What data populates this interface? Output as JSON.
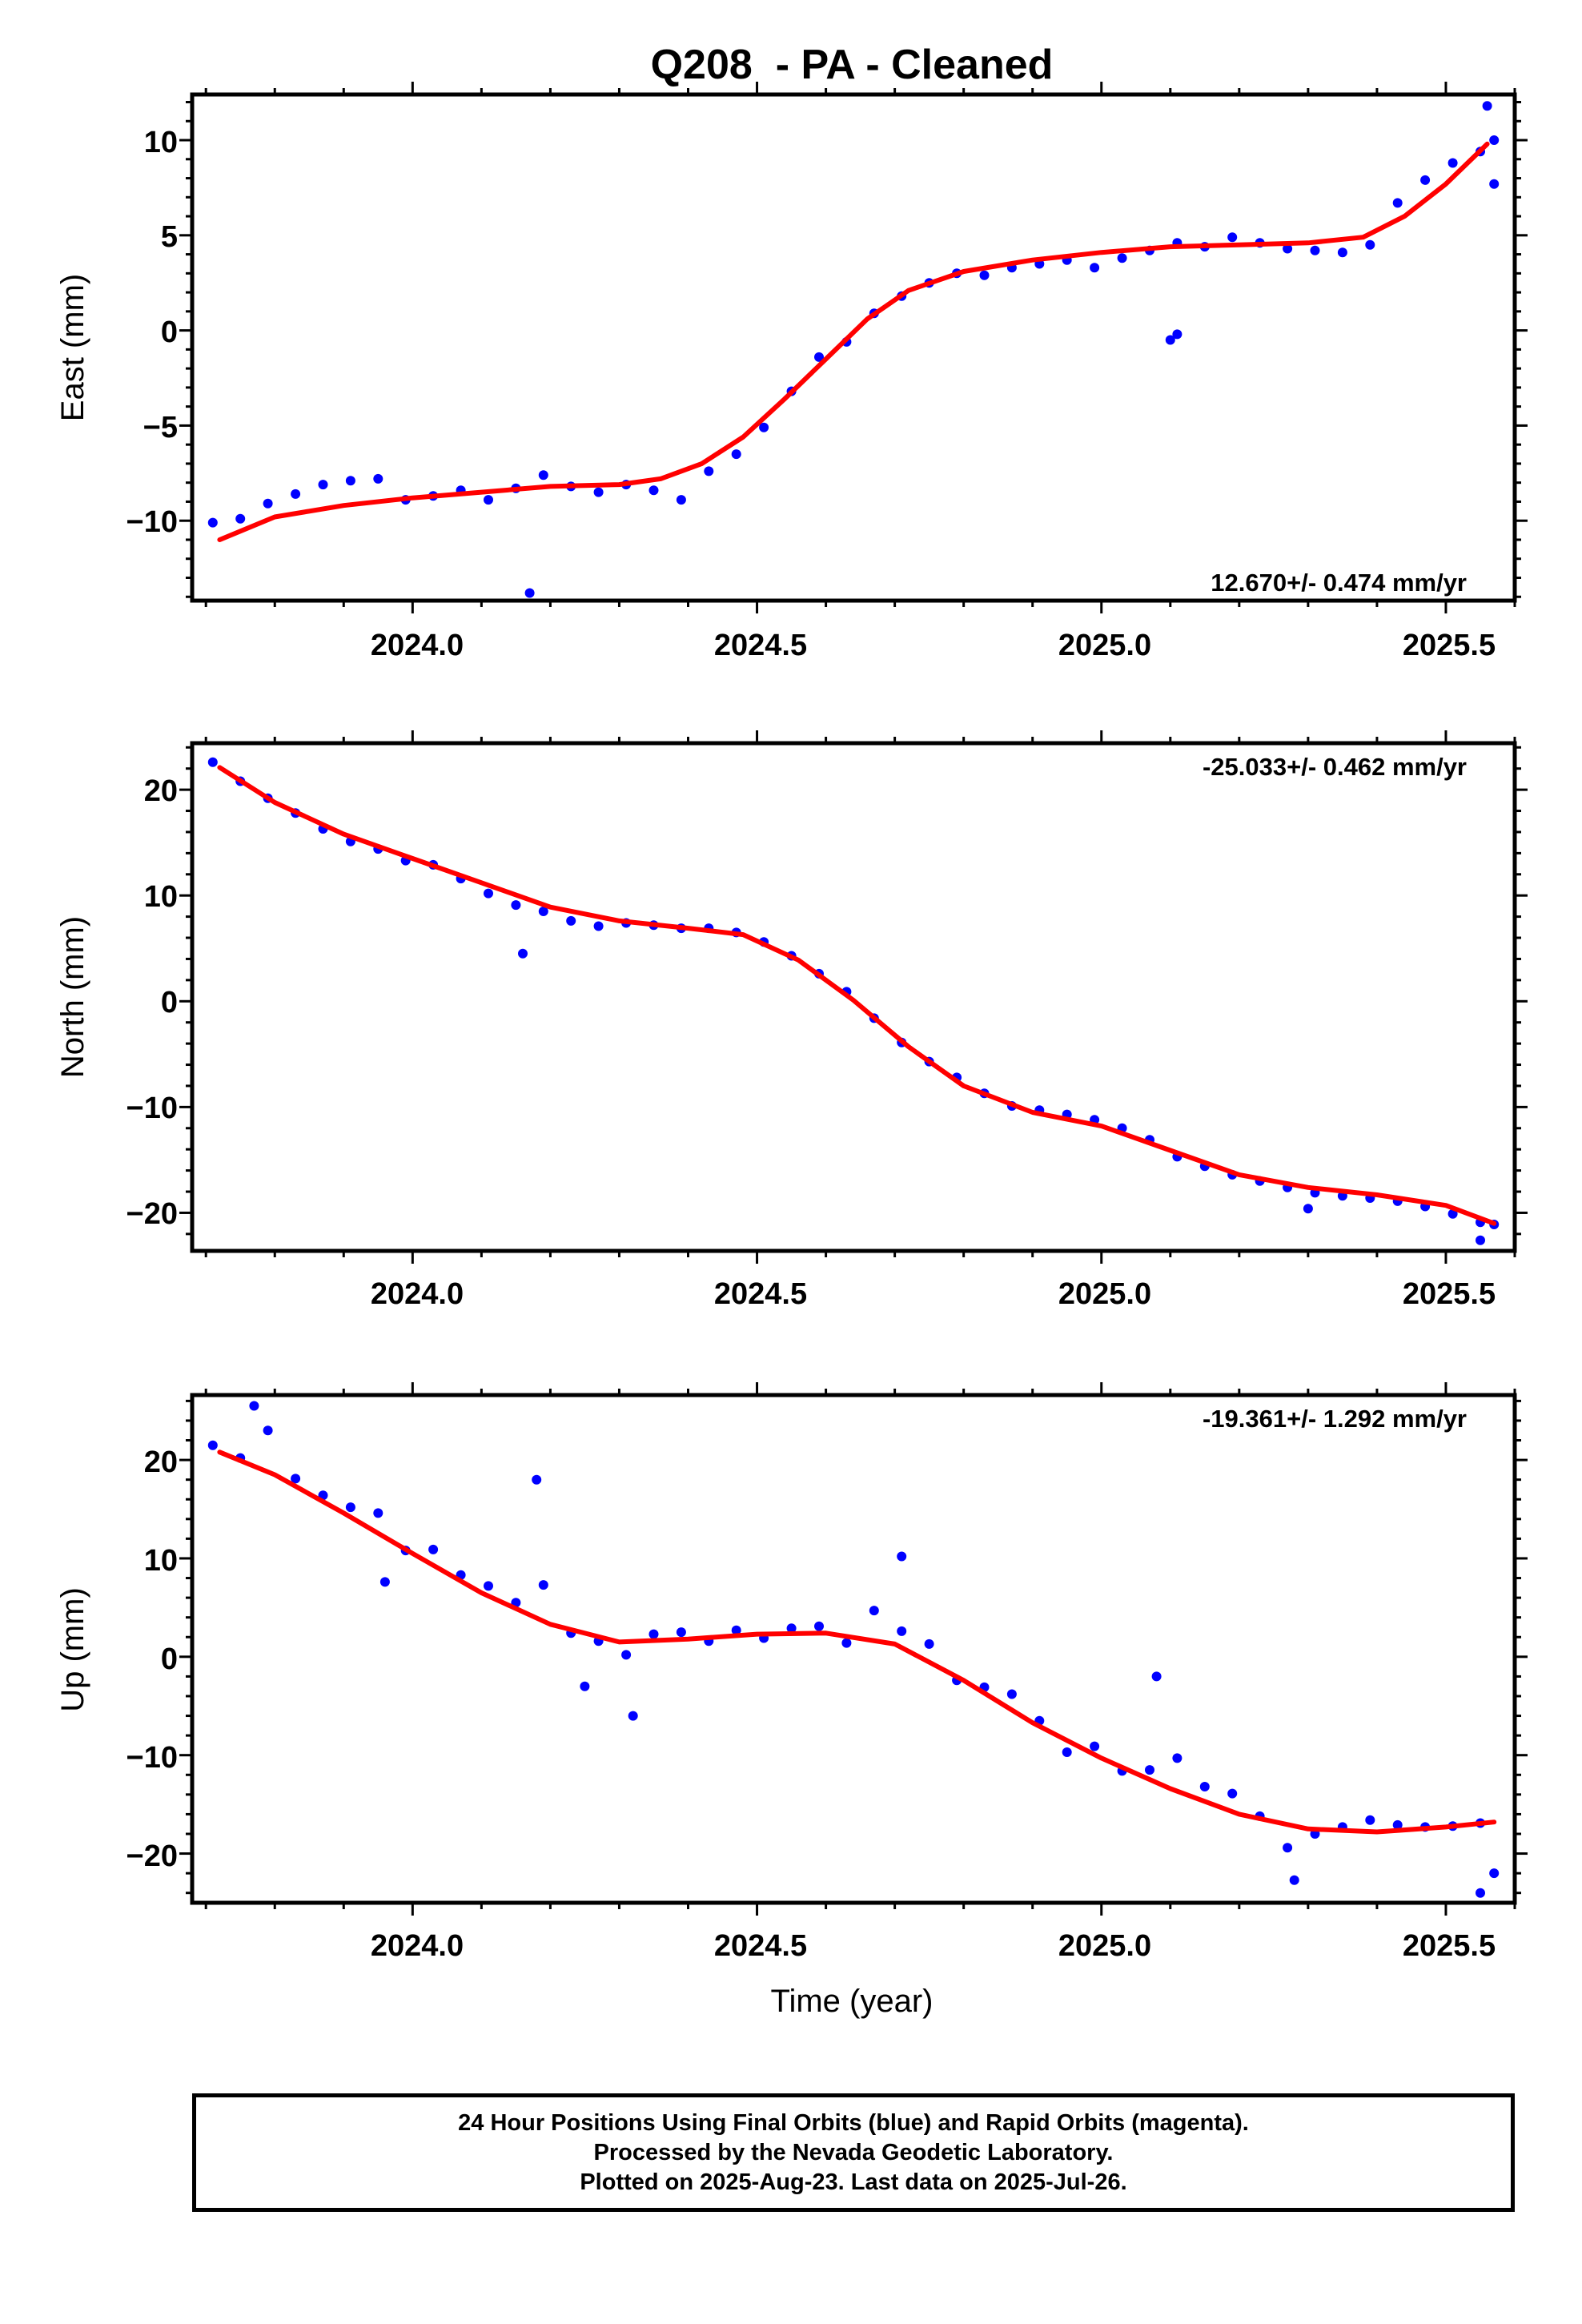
{
  "chart_data": {
    "title": "Q208  - PA - Cleaned",
    "xlabel": "Time (year)",
    "xlim": [
      2023.68,
      2025.6
    ],
    "xticks": [
      "2024.0",
      "2024.5",
      "2025.0",
      "2025.5"
    ],
    "grid": false,
    "panels": [
      {
        "type": "scatter",
        "ylabel": "East (mm)",
        "ylim": [
          -14.2,
          12.4
        ],
        "yticks": [
          "10",
          "5",
          "0",
          "−5",
          "−10"
        ],
        "rate_label": "12.670+/- 0.474 mm/yr",
        "rate_position": "bottom-right",
        "series": [
          {
            "name": "Final Orbits (blue)",
            "color": "#0000ff",
            "x": [
              2023.71,
              2023.75,
              2023.79,
              2023.83,
              2023.87,
              2023.91,
              2023.95,
              2023.99,
              2024.03,
              2024.07,
              2024.11,
              2024.15,
              2024.19,
              2024.23,
              2024.27,
              2024.31,
              2024.35,
              2024.39,
              2024.43,
              2024.47,
              2024.51,
              2024.55,
              2024.59,
              2024.63,
              2024.67,
              2024.71,
              2024.75,
              2024.79,
              2024.83,
              2024.87,
              2024.91,
              2024.95,
              2024.99,
              2025.03,
              2025.07,
              2025.11,
              2025.15,
              2025.19,
              2025.23,
              2025.27,
              2025.31,
              2025.35,
              2025.39,
              2025.43,
              2025.47,
              2025.51,
              2025.55,
              2025.57
            ],
            "y": [
              -10.1,
              -9.9,
              -9.1,
              -8.6,
              -8.1,
              -7.9,
              -7.8,
              -8.9,
              -8.7,
              -8.4,
              -8.9,
              -8.3,
              -7.6,
              -8.2,
              -8.5,
              -8.1,
              -8.4,
              -8.9,
              -7.4,
              -6.5,
              -5.1,
              -3.2,
              -1.4,
              -0.6,
              0.9,
              1.8,
              2.5,
              3.0,
              2.9,
              3.3,
              3.5,
              3.7,
              3.3,
              3.8,
              4.2,
              4.6,
              4.4,
              4.9,
              4.6,
              4.3,
              4.2,
              4.1,
              4.5,
              6.7,
              7.9,
              8.8,
              9.4,
              10.0
            ]
          }
        ],
        "outliers": [
          [
            2024.17,
            -13.8
          ],
          [
            2025.1,
            -0.5
          ],
          [
            2025.11,
            -0.2
          ],
          [
            2025.56,
            11.8
          ],
          [
            2025.57,
            7.7
          ]
        ],
        "fit": {
          "x": [
            2023.72,
            2023.8,
            2023.9,
            2024.0,
            2024.1,
            2024.2,
            2024.3,
            2024.36,
            2024.42,
            2024.48,
            2024.54,
            2024.6,
            2024.66,
            2024.72,
            2024.8,
            2024.9,
            2025.0,
            2025.1,
            2025.2,
            2025.3,
            2025.38,
            2025.44,
            2025.5,
            2025.56
          ],
          "y": [
            -11.0,
            -9.8,
            -9.2,
            -8.8,
            -8.5,
            -8.2,
            -8.1,
            -7.8,
            -7.0,
            -5.6,
            -3.6,
            -1.5,
            0.6,
            2.1,
            3.1,
            3.7,
            4.1,
            4.4,
            4.5,
            4.6,
            4.9,
            6.0,
            7.7,
            9.8
          ]
        }
      },
      {
        "type": "scatter",
        "ylabel": "North (mm)",
        "ylim": [
          -23.6,
          24.4
        ],
        "yticks": [
          "20",
          "10",
          "0",
          "−10",
          "−20"
        ],
        "rate_label": "-25.033+/- 0.462 mm/yr",
        "rate_position": "top-right",
        "series": [
          {
            "name": "Final Orbits (blue)",
            "color": "#0000ff",
            "x": [
              2023.71,
              2023.75,
              2023.79,
              2023.83,
              2023.87,
              2023.91,
              2023.95,
              2023.99,
              2024.03,
              2024.07,
              2024.11,
              2024.15,
              2024.19,
              2024.23,
              2024.27,
              2024.31,
              2024.35,
              2024.39,
              2024.43,
              2024.47,
              2024.51,
              2024.55,
              2024.59,
              2024.63,
              2024.67,
              2024.71,
              2024.75,
              2024.79,
              2024.83,
              2024.87,
              2024.91,
              2024.95,
              2024.99,
              2025.03,
              2025.07,
              2025.11,
              2025.15,
              2025.19,
              2025.23,
              2025.27,
              2025.31,
              2025.35,
              2025.39,
              2025.43,
              2025.47,
              2025.51,
              2025.55,
              2025.57
            ],
            "y": [
              22.6,
              20.8,
              19.2,
              17.8,
              16.3,
              15.1,
              14.4,
              13.3,
              12.9,
              11.6,
              10.2,
              9.1,
              8.5,
              7.6,
              7.1,
              7.4,
              7.2,
              6.9,
              6.9,
              6.5,
              5.6,
              4.3,
              2.6,
              0.9,
              -1.6,
              -3.9,
              -5.7,
              -7.2,
              -8.7,
              -9.9,
              -10.3,
              -10.7,
              -11.2,
              -12.0,
              -13.1,
              -14.7,
              -15.6,
              -16.4,
              -17.0,
              -17.6,
              -18.1,
              -18.4,
              -18.6,
              -18.9,
              -19.4,
              -20.1,
              -20.9,
              -21.1
            ]
          }
        ],
        "outliers": [
          [
            2024.16,
            4.5
          ],
          [
            2025.3,
            -19.6
          ],
          [
            2025.55,
            -22.6
          ]
        ],
        "fit": {
          "x": [
            2023.72,
            2023.8,
            2023.9,
            2024.0,
            2024.1,
            2024.2,
            2024.3,
            2024.4,
            2024.48,
            2024.56,
            2024.64,
            2024.72,
            2024.8,
            2024.9,
            2025.0,
            2025.1,
            2025.2,
            2025.3,
            2025.4,
            2025.5,
            2025.57
          ],
          "y": [
            22.1,
            18.8,
            15.8,
            13.5,
            11.2,
            8.9,
            7.6,
            6.9,
            6.3,
            3.9,
            0.1,
            -4.3,
            -8.0,
            -10.5,
            -11.8,
            -14.1,
            -16.4,
            -17.6,
            -18.3,
            -19.3,
            -21.0
          ]
        }
      },
      {
        "type": "scatter",
        "ylabel": "Up (mm)",
        "ylim": [
          -25.0,
          26.6
        ],
        "yticks": [
          "20",
          "10",
          "0",
          "−10",
          "−20"
        ],
        "rate_label": "-19.361+/- 1.292 mm/yr",
        "rate_position": "top-right",
        "series": [
          {
            "name": "Final Orbits (blue)",
            "color": "#0000ff",
            "x": [
              2023.71,
              2023.75,
              2023.79,
              2023.83,
              2023.87,
              2023.91,
              2023.95,
              2023.99,
              2024.03,
              2024.07,
              2024.11,
              2024.15,
              2024.19,
              2024.23,
              2024.27,
              2024.31,
              2024.35,
              2024.39,
              2024.43,
              2024.47,
              2024.51,
              2024.55,
              2024.59,
              2024.63,
              2024.67,
              2024.71,
              2024.75,
              2024.79,
              2024.83,
              2024.87,
              2024.91,
              2024.95,
              2024.99,
              2025.03,
              2025.07,
              2025.11,
              2025.15,
              2025.19,
              2025.23,
              2025.27,
              2025.31,
              2025.35,
              2025.39,
              2025.43,
              2025.47,
              2025.51,
              2025.55,
              2025.57
            ],
            "y": [
              21.5,
              20.2,
              23.0,
              18.1,
              16.4,
              15.2,
              14.6,
              10.8,
              10.9,
              8.3,
              7.2,
              5.5,
              7.3,
              2.4,
              1.6,
              0.2,
              2.3,
              2.5,
              1.6,
              2.7,
              1.9,
              2.9,
              3.1,
              1.4,
              4.7,
              2.6,
              1.3,
              -2.4,
              -3.1,
              -3.8,
              -6.5,
              -9.7,
              -9.1,
              -11.6,
              -11.5,
              -10.3,
              -13.2,
              -13.9,
              -16.2,
              -19.4,
              -18.0,
              -17.3,
              -16.6,
              -17.1,
              -17.3,
              -17.2,
              -16.9,
              -22.0
            ]
          }
        ],
        "outliers": [
          [
            2023.77,
            25.5
          ],
          [
            2023.96,
            7.6
          ],
          [
            2024.18,
            18.0
          ],
          [
            2024.25,
            -3.0
          ],
          [
            2024.32,
            -6.0
          ],
          [
            2024.71,
            10.2
          ],
          [
            2025.08,
            -2.0
          ],
          [
            2025.28,
            -22.7
          ],
          [
            2025.55,
            -24.0
          ]
        ],
        "fit": {
          "x": [
            2023.72,
            2023.8,
            2023.9,
            2024.0,
            2024.1,
            2024.2,
            2024.3,
            2024.4,
            2024.5,
            2024.6,
            2024.7,
            2024.8,
            2024.9,
            2025.0,
            2025.1,
            2025.2,
            2025.3,
            2025.4,
            2025.5,
            2025.57
          ],
          "y": [
            20.8,
            18.5,
            14.6,
            10.5,
            6.5,
            3.3,
            1.5,
            1.8,
            2.3,
            2.4,
            1.3,
            -2.4,
            -6.7,
            -10.3,
            -13.4,
            -16.0,
            -17.5,
            -17.8,
            -17.3,
            -16.8
          ]
        }
      }
    ]
  },
  "colors": {
    "data": "#0000ff",
    "fit": "#ff0000",
    "frame": "#000000"
  },
  "footer": {
    "line1": "24 Hour Positions Using Final Orbits (blue) and Rapid Orbits (magenta).",
    "line2": "Processed by the Nevada Geodetic Laboratory.",
    "line3": "Plotted on 2025-Aug-23. Last data on 2025-Jul-26."
  }
}
